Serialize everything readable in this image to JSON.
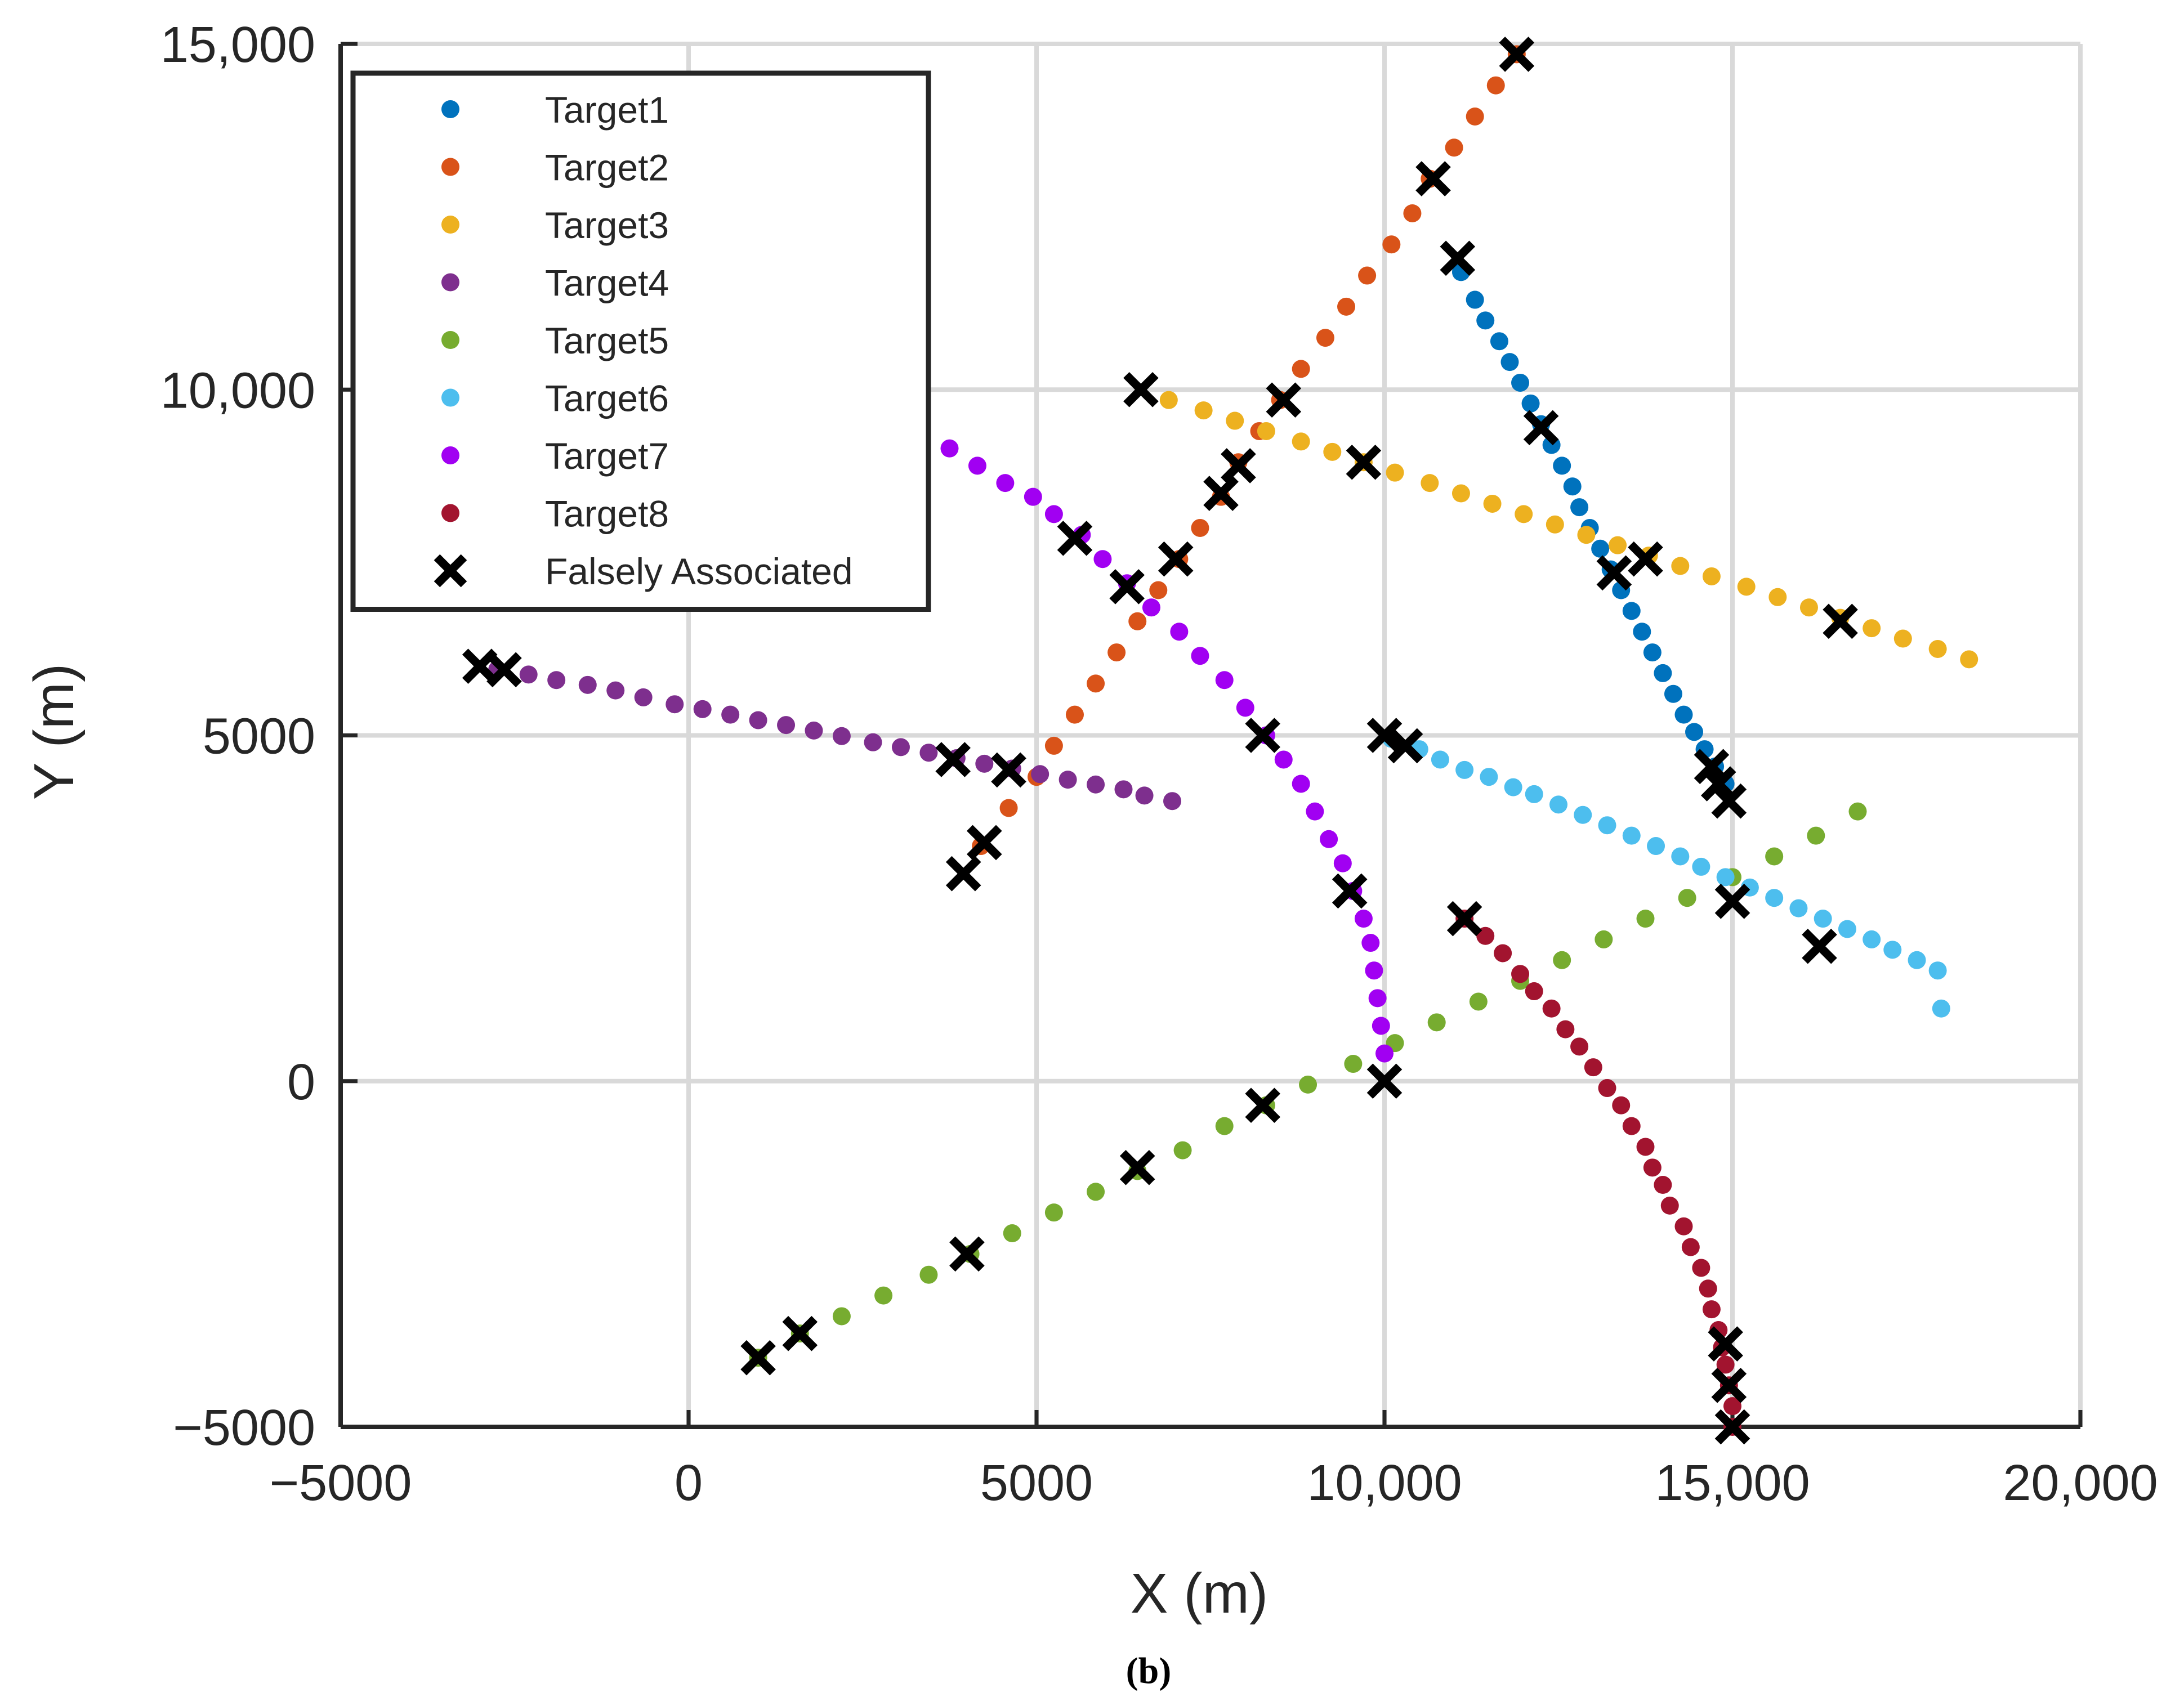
{
  "caption": "(b)",
  "chart_data": {
    "type": "scatter",
    "title": "",
    "xlabel": "X (m)",
    "ylabel": "Y (m)",
    "xlim": [
      -5000,
      20000
    ],
    "ylim": [
      -5000,
      15000
    ],
    "grid": true,
    "legend_position": "top-left",
    "xticks": [
      -5000,
      0,
      5000,
      10000,
      15000,
      20000
    ],
    "xtick_labels": [
      "−5000",
      "0",
      "5000",
      "10,000",
      "15,000",
      "20,000"
    ],
    "yticks": [
      -5000,
      0,
      5000,
      10000,
      15000
    ],
    "ytick_labels": [
      "−5000",
      "0",
      "5000",
      "10,000",
      "15,000"
    ],
    "series": [
      {
        "name": "Target1",
        "color": "#0072BD",
        "marker": "dot",
        "points": [
          [
            11100,
            11700
          ],
          [
            11300,
            11300
          ],
          [
            11450,
            11000
          ],
          [
            11650,
            10700
          ],
          [
            11800,
            10400
          ],
          [
            11950,
            10100
          ],
          [
            12100,
            9800
          ],
          [
            12250,
            9500
          ],
          [
            12400,
            9200
          ],
          [
            12550,
            8900
          ],
          [
            12700,
            8600
          ],
          [
            12800,
            8300
          ],
          [
            12950,
            8000
          ],
          [
            13100,
            7700
          ],
          [
            13250,
            7400
          ],
          [
            13400,
            7100
          ],
          [
            13550,
            6800
          ],
          [
            13700,
            6500
          ],
          [
            13850,
            6200
          ],
          [
            14000,
            5900
          ],
          [
            14150,
            5600
          ],
          [
            14300,
            5300
          ],
          [
            14450,
            5050
          ],
          [
            14600,
            4800
          ],
          [
            14750,
            4550
          ],
          [
            14900,
            4300
          ]
        ]
      },
      {
        "name": "Target2",
        "color": "#D95319",
        "marker": "dot",
        "points": [
          [
            4200,
            3400
          ],
          [
            4600,
            3950
          ],
          [
            5000,
            4400
          ],
          [
            5250,
            4850
          ],
          [
            5550,
            5300
          ],
          [
            5850,
            5750
          ],
          [
            6150,
            6200
          ],
          [
            6450,
            6650
          ],
          [
            6750,
            7100
          ],
          [
            7050,
            7550
          ],
          [
            7350,
            8000
          ],
          [
            7650,
            8450
          ],
          [
            7900,
            8950
          ],
          [
            8200,
            9400
          ],
          [
            8500,
            9850
          ],
          [
            8800,
            10300
          ],
          [
            9150,
            10750
          ],
          [
            9450,
            11200
          ],
          [
            9750,
            11650
          ],
          [
            10100,
            12100
          ],
          [
            10400,
            12550
          ],
          [
            10650,
            13050
          ],
          [
            11000,
            13500
          ],
          [
            11300,
            13950
          ],
          [
            11600,
            14400
          ],
          [
            11900,
            14850
          ]
        ]
      },
      {
        "name": "Target3",
        "color": "#EDB120",
        "marker": "dot",
        "points": [
          [
            6900,
            9850
          ],
          [
            7400,
            9700
          ],
          [
            7850,
            9550
          ],
          [
            8300,
            9400
          ],
          [
            8800,
            9250
          ],
          [
            9250,
            9100
          ],
          [
            9700,
            8950
          ],
          [
            10150,
            8800
          ],
          [
            10650,
            8650
          ],
          [
            11100,
            8500
          ],
          [
            11550,
            8350
          ],
          [
            12000,
            8200
          ],
          [
            12450,
            8050
          ],
          [
            12900,
            7900
          ],
          [
            13350,
            7750
          ],
          [
            13800,
            7600
          ],
          [
            14250,
            7450
          ],
          [
            14700,
            7300
          ],
          [
            15200,
            7150
          ],
          [
            15650,
            7000
          ],
          [
            16100,
            6850
          ],
          [
            16550,
            6700
          ],
          [
            17000,
            6550
          ],
          [
            17450,
            6400
          ],
          [
            17950,
            6250
          ],
          [
            18400,
            6100
          ]
        ]
      },
      {
        "name": "Target4",
        "color": "#7E2F8E",
        "marker": "dot",
        "points": [
          [
            -2750,
            5950
          ],
          [
            -2300,
            5880
          ],
          [
            -1900,
            5800
          ],
          [
            -1450,
            5730
          ],
          [
            -1050,
            5650
          ],
          [
            -650,
            5550
          ],
          [
            -200,
            5450
          ],
          [
            200,
            5380
          ],
          [
            600,
            5300
          ],
          [
            1000,
            5220
          ],
          [
            1400,
            5150
          ],
          [
            1800,
            5070
          ],
          [
            2200,
            4990
          ],
          [
            2650,
            4900
          ],
          [
            3050,
            4830
          ],
          [
            3450,
            4750
          ],
          [
            3850,
            4670
          ],
          [
            4250,
            4590
          ],
          [
            4650,
            4520
          ],
          [
            5050,
            4440
          ],
          [
            5450,
            4360
          ],
          [
            5850,
            4290
          ],
          [
            6250,
            4220
          ],
          [
            6550,
            4130
          ],
          [
            6950,
            4050
          ]
        ]
      },
      {
        "name": "Target5",
        "color": "#77AC30",
        "marker": "dot",
        "points": [
          [
            1000,
            -4000
          ],
          [
            1600,
            -3650
          ],
          [
            2200,
            -3400
          ],
          [
            2800,
            -3100
          ],
          [
            3450,
            -2800
          ],
          [
            4050,
            -2500
          ],
          [
            4650,
            -2200
          ],
          [
            5250,
            -1900
          ],
          [
            5850,
            -1600
          ],
          [
            6450,
            -1300
          ],
          [
            7100,
            -1000
          ],
          [
            7700,
            -650
          ],
          [
            8300,
            -350
          ],
          [
            8900,
            -50
          ],
          [
            9550,
            250
          ],
          [
            10150,
            550
          ],
          [
            10750,
            850
          ],
          [
            11350,
            1150
          ],
          [
            11950,
            1450
          ],
          [
            12550,
            1750
          ],
          [
            13150,
            2050
          ],
          [
            13750,
            2350
          ],
          [
            14350,
            2650
          ],
          [
            15000,
            2950
          ],
          [
            15600,
            3250
          ],
          [
            16200,
            3550
          ],
          [
            16800,
            3900
          ]
        ]
      },
      {
        "name": "Target6",
        "color": "#4DBEEE",
        "marker": "dot",
        "points": [
          [
            10100,
            4950
          ],
          [
            10500,
            4800
          ],
          [
            10800,
            4650
          ],
          [
            11150,
            4500
          ],
          [
            11500,
            4400
          ],
          [
            11850,
            4250
          ],
          [
            12150,
            4150
          ],
          [
            12500,
            4000
          ],
          [
            12850,
            3850
          ],
          [
            13200,
            3700
          ],
          [
            13550,
            3550
          ],
          [
            13900,
            3400
          ],
          [
            14250,
            3250
          ],
          [
            14550,
            3100
          ],
          [
            14900,
            2950
          ],
          [
            15250,
            2800
          ],
          [
            15600,
            2650
          ],
          [
            15950,
            2500
          ],
          [
            16300,
            2350
          ],
          [
            16650,
            2200
          ],
          [
            17000,
            2050
          ],
          [
            17300,
            1900
          ],
          [
            17650,
            1750
          ],
          [
            17950,
            1600
          ],
          [
            18000,
            1050
          ]
        ]
      },
      {
        "name": "Target7",
        "color": "#A100F2",
        "marker": "dot",
        "points": [
          [
            3750,
            9150
          ],
          [
            4150,
            8900
          ],
          [
            4550,
            8650
          ],
          [
            4950,
            8450
          ],
          [
            5250,
            8200
          ],
          [
            5650,
            7900
          ],
          [
            5950,
            7550
          ],
          [
            6300,
            7200
          ],
          [
            6650,
            6850
          ],
          [
            7050,
            6500
          ],
          [
            7350,
            6150
          ],
          [
            7700,
            5800
          ],
          [
            8000,
            5400
          ],
          [
            8300,
            5000
          ],
          [
            8550,
            4650
          ],
          [
            8800,
            4300
          ],
          [
            9000,
            3900
          ],
          [
            9200,
            3500
          ],
          [
            9400,
            3150
          ],
          [
            9550,
            2750
          ],
          [
            9700,
            2350
          ],
          [
            9800,
            2000
          ],
          [
            9850,
            1600
          ],
          [
            9900,
            1200
          ],
          [
            9950,
            800
          ],
          [
            10000,
            400
          ]
        ]
      },
      {
        "name": "Target8",
        "color": "#A2142F",
        "marker": "dot",
        "points": [
          [
            11150,
            2350
          ],
          [
            11450,
            2100
          ],
          [
            11700,
            1850
          ],
          [
            11950,
            1550
          ],
          [
            12150,
            1300
          ],
          [
            12400,
            1050
          ],
          [
            12600,
            750
          ],
          [
            12800,
            500
          ],
          [
            13000,
            200
          ],
          [
            13200,
            -100
          ],
          [
            13400,
            -350
          ],
          [
            13550,
            -650
          ],
          [
            13750,
            -950
          ],
          [
            13850,
            -1250
          ],
          [
            14000,
            -1500
          ],
          [
            14100,
            -1800
          ],
          [
            14300,
            -2100
          ],
          [
            14400,
            -2400
          ],
          [
            14550,
            -2700
          ],
          [
            14650,
            -3000
          ],
          [
            14700,
            -3300
          ],
          [
            14800,
            -3600
          ],
          [
            14850,
            -3850
          ],
          [
            14900,
            -4100
          ],
          [
            14950,
            -4400
          ],
          [
            15000,
            -4700
          ],
          [
            15000,
            -5000
          ]
        ]
      },
      {
        "name": "Falsely Associated",
        "color": "#000000",
        "marker": "x",
        "points": [
          [
            11900,
            14850
          ],
          [
            10700,
            13050
          ],
          [
            11050,
            11900
          ],
          [
            8550,
            9850
          ],
          [
            6500,
            10000
          ],
          [
            7900,
            8900
          ],
          [
            7650,
            8500
          ],
          [
            9700,
            8950
          ],
          [
            12250,
            9450
          ],
          [
            5550,
            7850
          ],
          [
            6300,
            7150
          ],
          [
            7000,
            7550
          ],
          [
            13300,
            7350
          ],
          [
            13750,
            7550
          ],
          [
            16550,
            6650
          ],
          [
            -3000,
            6000
          ],
          [
            -2650,
            5950
          ],
          [
            3800,
            4650
          ],
          [
            4600,
            4500
          ],
          [
            4250,
            3450
          ],
          [
            3950,
            3000
          ],
          [
            8250,
            5000
          ],
          [
            10000,
            5000
          ],
          [
            10300,
            4850
          ],
          [
            14700,
            4550
          ],
          [
            14800,
            4300
          ],
          [
            14950,
            4050
          ],
          [
            15000,
            2600
          ],
          [
            16250,
            1950
          ],
          [
            9500,
            2750
          ],
          [
            11150,
            2350
          ],
          [
            10000,
            0
          ],
          [
            8250,
            -350
          ],
          [
            6450,
            -1250
          ],
          [
            4000,
            -2500
          ],
          [
            1600,
            -3650
          ],
          [
            1000,
            -4000
          ],
          [
            14900,
            -3800
          ],
          [
            14950,
            -4400
          ],
          [
            15000,
            -5000
          ]
        ]
      }
    ]
  }
}
